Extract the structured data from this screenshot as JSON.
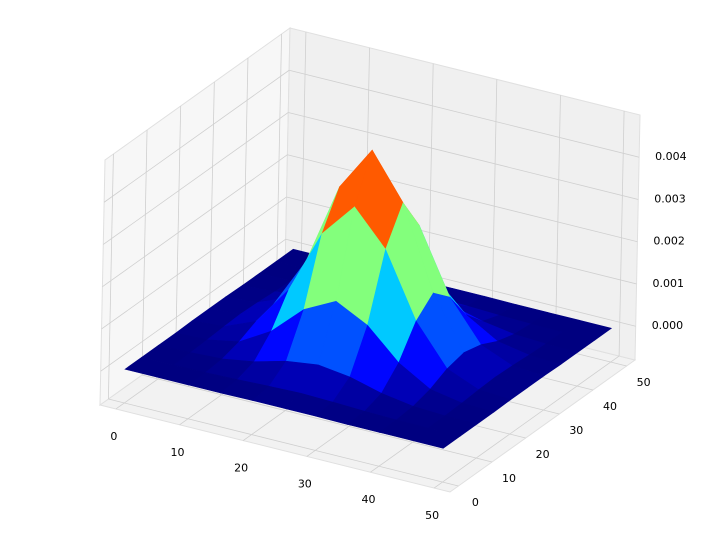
{
  "chart_data": {
    "type": "surface",
    "colormap": "jet",
    "grid": true,
    "x": [
      0,
      5,
      10,
      15,
      20,
      25,
      30,
      35,
      40,
      45,
      50
    ],
    "y": [
      0,
      5,
      10,
      15,
      20,
      25,
      30,
      35,
      40,
      45,
      50
    ],
    "z": [
      [
        0,
        0,
        0,
        0,
        1e-05,
        1e-05,
        1e-05,
        0,
        0,
        0,
        0
      ],
      [
        0,
        0,
        1e-05,
        3e-05,
        6e-05,
        8e-05,
        6e-05,
        3e-05,
        1e-05,
        0,
        0
      ],
      [
        0,
        1e-05,
        5e-05,
        0.00017,
        0.00037,
        0.00047,
        0.00037,
        0.00017,
        5e-05,
        1e-05,
        0
      ],
      [
        0,
        3e-05,
        0.00017,
        0.00061,
        0.00131,
        0.00169,
        0.00131,
        0.00061,
        0.00017,
        3e-05,
        0
      ],
      [
        1e-05,
        6e-05,
        0.00037,
        0.00131,
        0.00282,
        0.00364,
        0.00282,
        0.00131,
        0.00037,
        6e-05,
        1e-05
      ],
      [
        1e-05,
        8e-05,
        0.00047,
        0.00169,
        0.00364,
        0.0047,
        0.00364,
        0.00169,
        0.00047,
        8e-05,
        1e-05
      ],
      [
        1e-05,
        6e-05,
        0.00037,
        0.00131,
        0.00282,
        0.00364,
        0.00282,
        0.00131,
        0.00037,
        6e-05,
        1e-05
      ],
      [
        0,
        3e-05,
        0.00017,
        0.00061,
        0.00131,
        0.00169,
        0.00131,
        0.00061,
        0.00017,
        3e-05,
        0
      ],
      [
        0,
        1e-05,
        5e-05,
        0.00017,
        0.00037,
        0.00047,
        0.00037,
        0.00017,
        5e-05,
        1e-05,
        0
      ],
      [
        0,
        0,
        1e-05,
        3e-05,
        6e-05,
        8e-05,
        6e-05,
        3e-05,
        1e-05,
        0,
        0
      ],
      [
        0,
        0,
        0,
        0,
        1e-05,
        1e-05,
        1e-05,
        0,
        0,
        0,
        0
      ]
    ],
    "xlim": [
      -2.5,
      52.5
    ],
    "ylim": [
      -2.5,
      52.5
    ],
    "zlim": [
      -0.0008,
      0.005
    ],
    "xticks": [
      0,
      10,
      20,
      30,
      40,
      50
    ],
    "yticks": [
      0,
      10,
      20,
      30,
      40,
      50
    ],
    "zticks": [
      {
        "value": 0,
        "label": "0.000"
      },
      {
        "value": 0.001,
        "label": "0.001"
      },
      {
        "value": 0.002,
        "label": "0.002"
      },
      {
        "value": 0.003,
        "label": "0.003"
      },
      {
        "value": 0.004,
        "label": "0.004"
      }
    ]
  }
}
